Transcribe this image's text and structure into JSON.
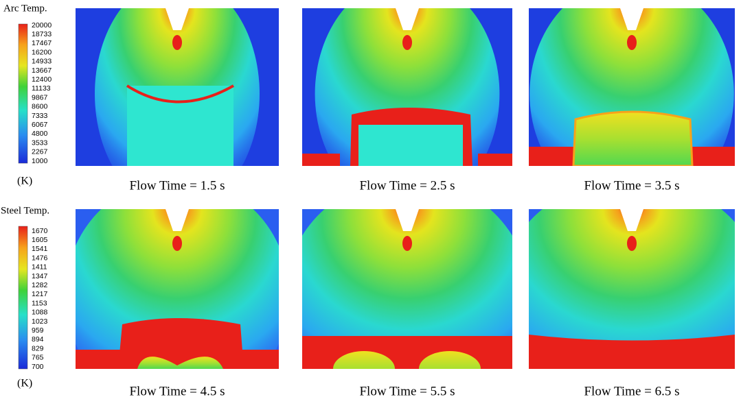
{
  "arc_colorbar": {
    "title": "Arc Temp.",
    "unit": "(K)",
    "ticks": [
      20000,
      18733,
      17467,
      16200,
      14933,
      13667,
      12400,
      11133,
      9867,
      8600,
      7333,
      6067,
      4800,
      3533,
      2267,
      1000
    ]
  },
  "steel_colorbar": {
    "title": "Steel Temp.",
    "unit": "(K)",
    "ticks": [
      1670,
      1605,
      1541,
      1476,
      1411,
      1347,
      1282,
      1217,
      1153,
      1088,
      1023,
      959,
      894,
      829,
      765,
      700
    ]
  },
  "panels": [
    {
      "caption": "Flow Time = 1.5 s"
    },
    {
      "caption": "Flow Time = 2.5 s"
    },
    {
      "caption": "Flow Time = 3.5 s"
    },
    {
      "caption": "Flow Time = 4.5 s"
    },
    {
      "caption": "Flow Time = 5.5 s"
    },
    {
      "caption": "Flow Time = 6.5 s"
    }
  ]
}
